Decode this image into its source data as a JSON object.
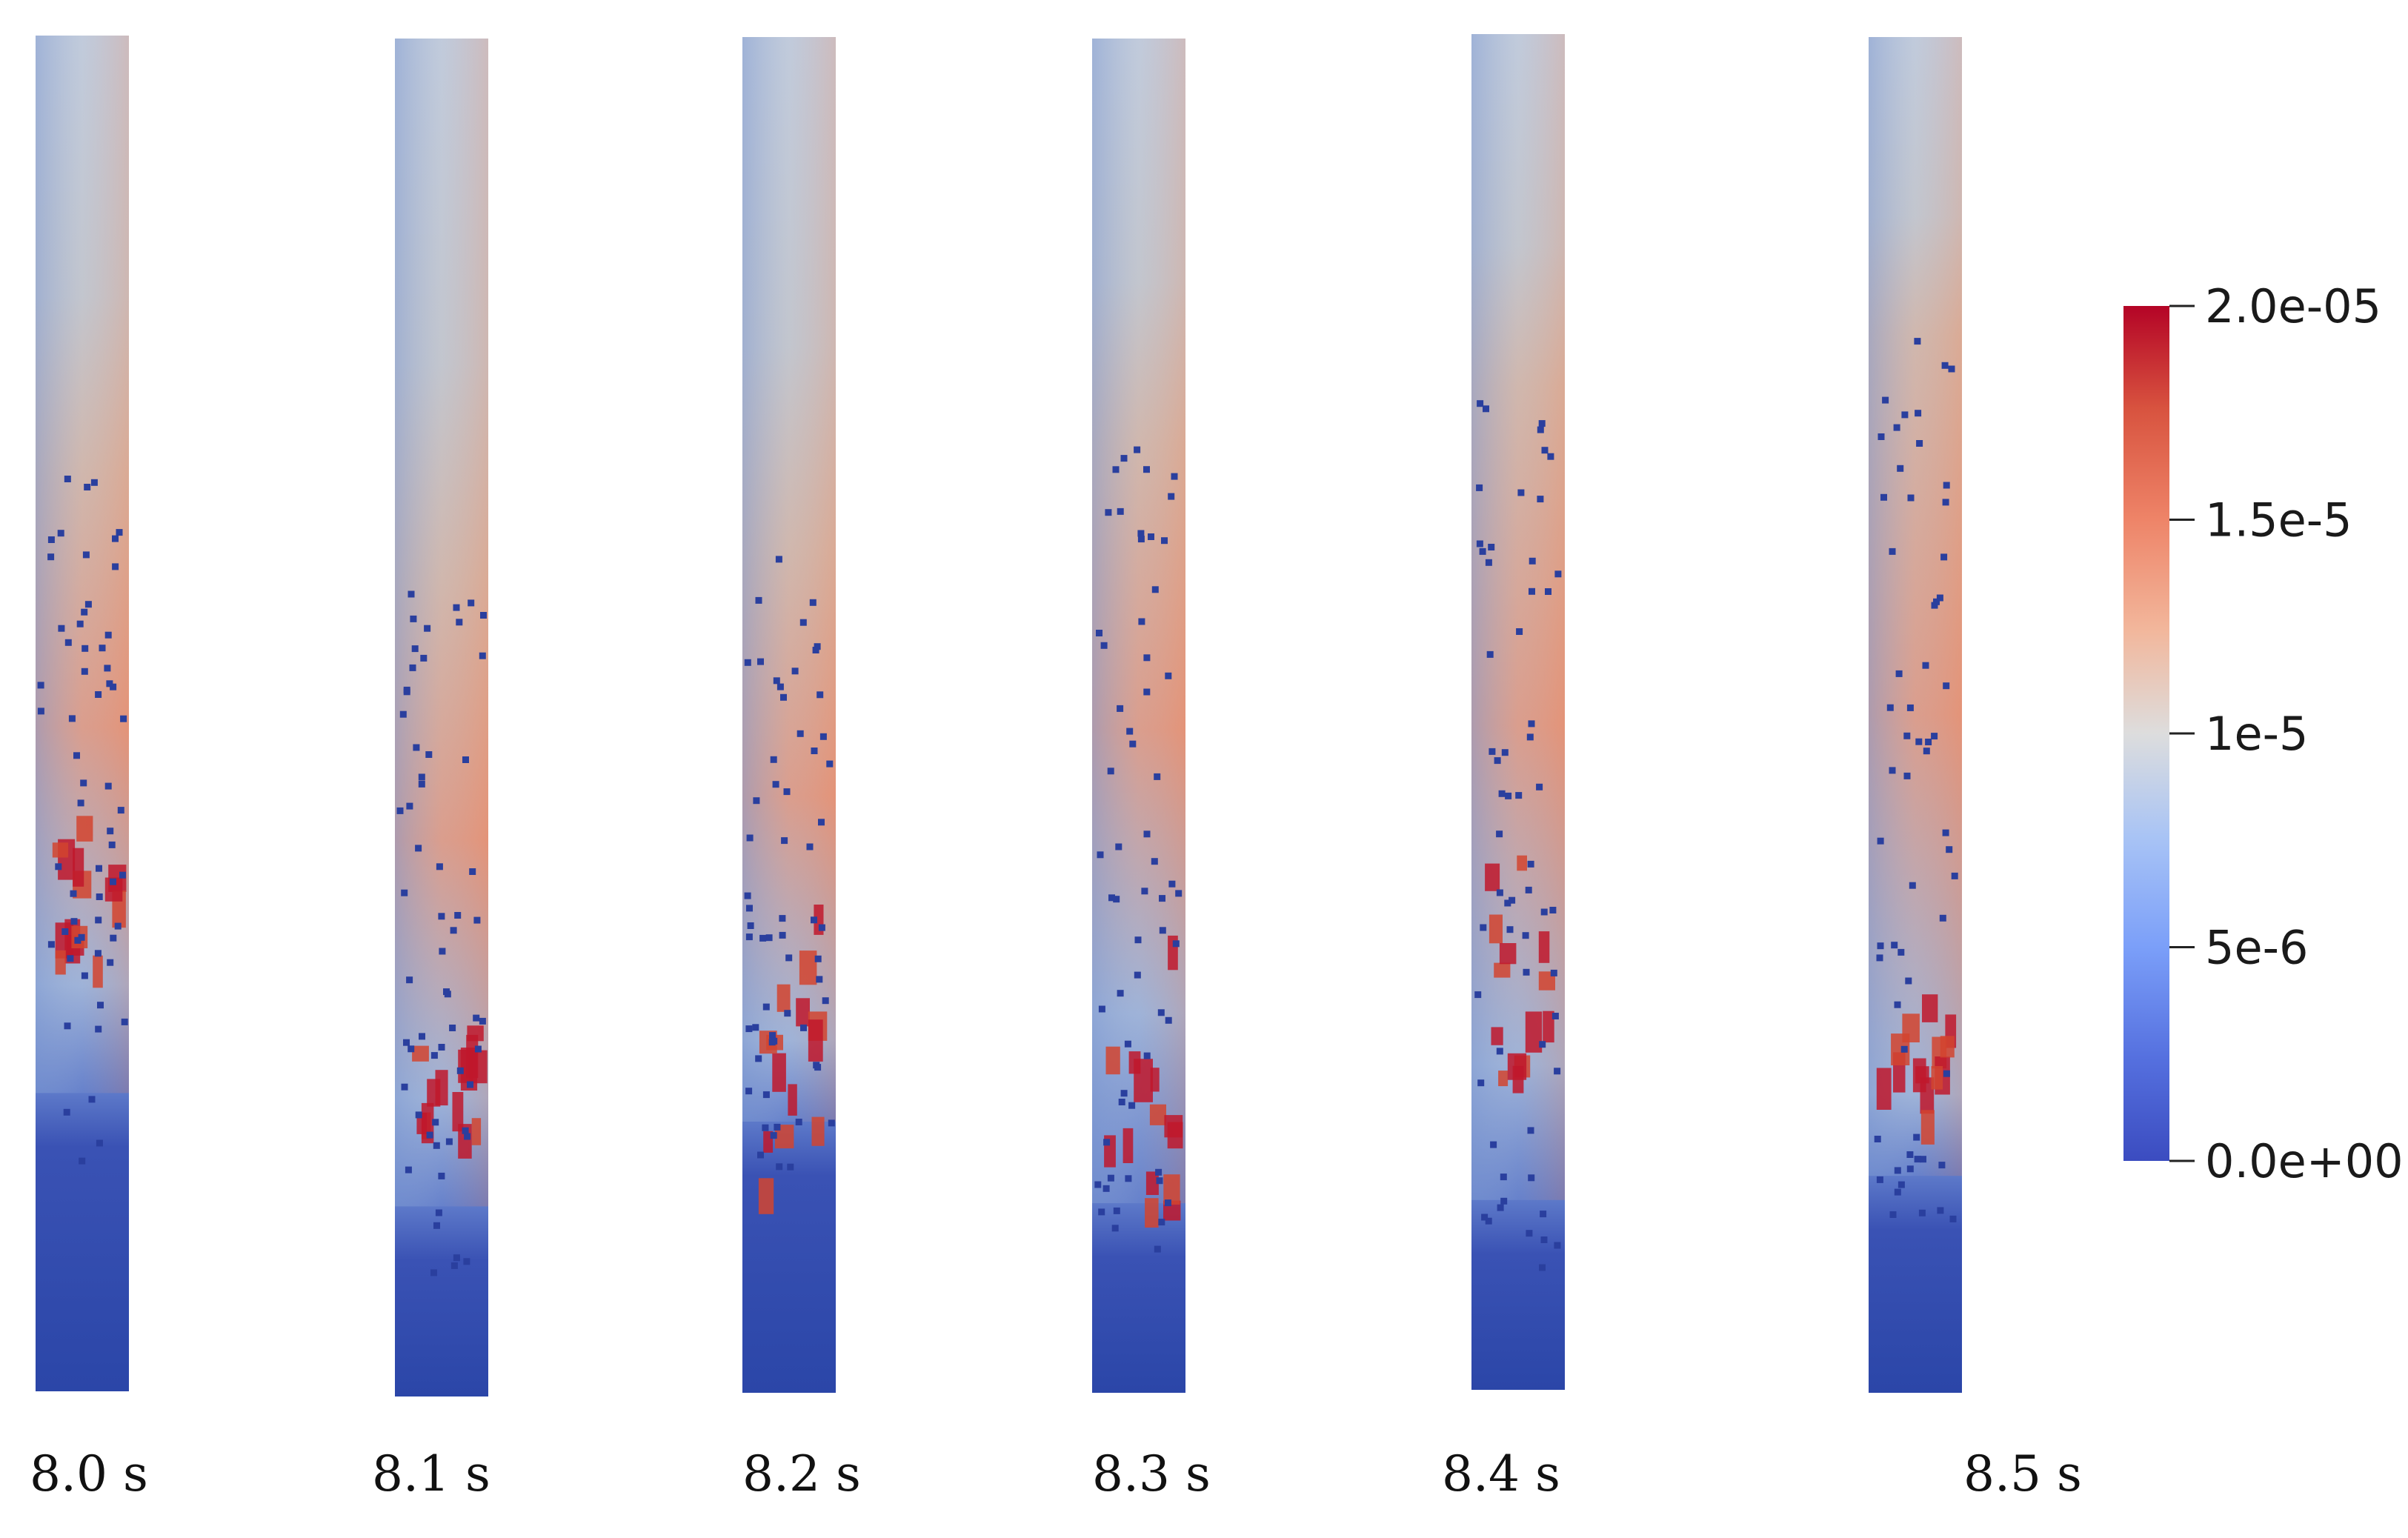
{
  "snapshots": [
    {
      "time_label": "8.0 s"
    },
    {
      "time_label": "8.1 s"
    },
    {
      "time_label": "8.2 s"
    },
    {
      "time_label": "8.3 s"
    },
    {
      "time_label": "8.4 s"
    },
    {
      "time_label": "8.5 s"
    }
  ],
  "colorbar": {
    "ticks": [
      {
        "label": "2.0e-05",
        "value": 2e-05
      },
      {
        "label": "1.5e-5",
        "value": 1.5e-05
      },
      {
        "label": "1e-5",
        "value": 1e-05
      },
      {
        "label": "5e-6",
        "value": 5e-06
      },
      {
        "label": "0.0e+00",
        "value": 0.0
      }
    ],
    "range": [
      0.0,
      2e-05
    ],
    "colormap": "cool-to-warm",
    "colors": {
      "low": "#3b4cc0",
      "mid": "#dddddd",
      "high": "#b40426"
    }
  }
}
